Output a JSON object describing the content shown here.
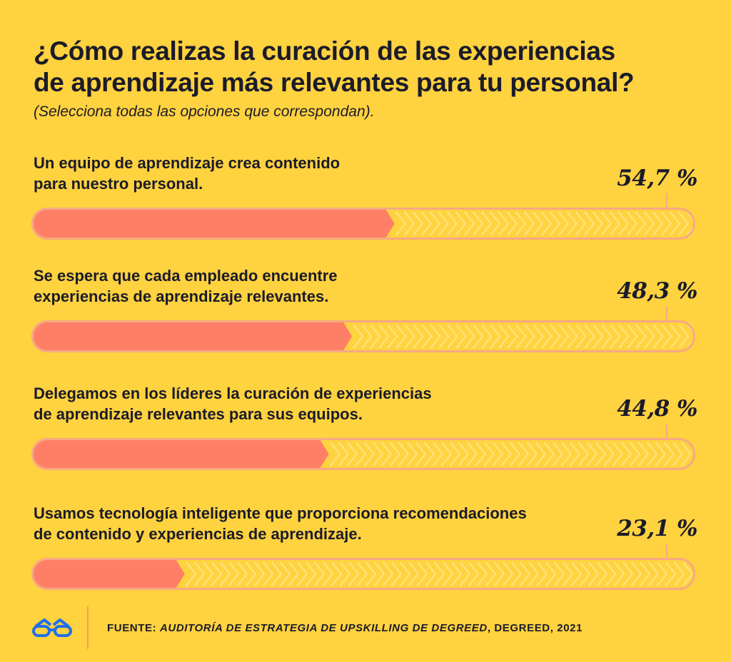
{
  "header": {
    "title_line1": "¿Cómo realizas la curación de las experiencias",
    "title_line2": "de aprendizaje más relevantes para tu personal?",
    "subtitle": "(Selecciona todas las opciones que correspondan)."
  },
  "colors": {
    "background": "#FFD23F",
    "bar_fill": "#FF7F66",
    "bar_outline": "#F7A985",
    "chevrons": "#FFE27A",
    "text": "#1B1B2A",
    "logo": "#1F6FEB"
  },
  "chart_data": {
    "type": "bar",
    "orientation": "horizontal",
    "unit": "%",
    "xlim": [
      0,
      100
    ],
    "categories": [
      [
        "Un equipo de aprendizaje crea contenido",
        "para nuestro personal."
      ],
      [
        "Se espera que cada empleado encuentre",
        "experiencias de aprendizaje relevantes."
      ],
      [
        "Delegamos en los líderes la curación de experiencias",
        "de aprendizaje relevantes para sus equipos."
      ],
      [
        "Usamos tecnología inteligente que proporciona recomendaciones",
        "de contenido y experiencias de aprendizaje."
      ]
    ],
    "values": [
      54.7,
      48.3,
      44.8,
      23.1
    ],
    "value_labels": [
      "54,7 %",
      "48,3 %",
      "44,8 %",
      "23,1 %"
    ]
  },
  "footer": {
    "logo_icon": "degreed-glasses-icon",
    "source_prefix": "FUENTE: ",
    "source_title": "AUDITORÍA DE ESTRATEGIA DE UPSKILLING DE DEGREED",
    "source_suffix": ", DEGREED, 2021"
  }
}
